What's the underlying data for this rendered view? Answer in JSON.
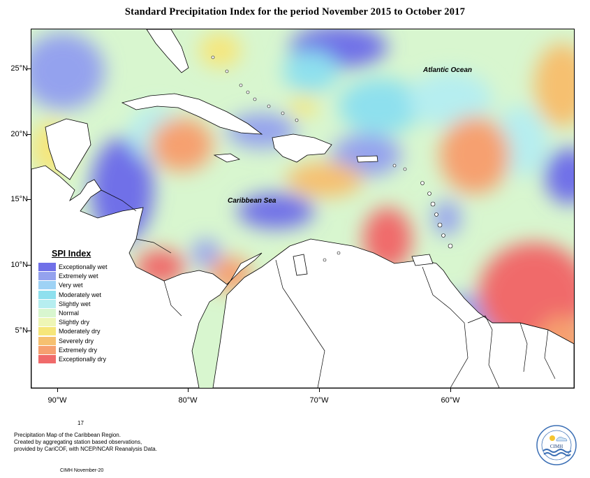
{
  "title": "Standard Precipitation Index for the period November 2015 to October 2017",
  "ocean_labels": {
    "atlantic": "Atlantic Ocean",
    "caribbean": "Caribbean Sea"
  },
  "latitude_labels": [
    "25°N",
    "20°N",
    "15°N",
    "10°N",
    "5°N"
  ],
  "longitude_labels": [
    "90°W",
    "80°W",
    "70°W",
    "60°W"
  ],
  "legend": {
    "title": "SPI Index",
    "items": [
      {
        "label": "Exceptionally wet",
        "color": "#7070e8"
      },
      {
        "label": "Extremely wet",
        "color": "#94a2ee"
      },
      {
        "label": "Very wet",
        "color": "#9ed2f5"
      },
      {
        "label": "Moderately wet",
        "color": "#8ee0ee"
      },
      {
        "label": "Slightly wet",
        "color": "#b6eef0"
      },
      {
        "label": "Normal",
        "color": "#d8f6cf"
      },
      {
        "label": "Slightly dry",
        "color": "#eef6b6"
      },
      {
        "label": "Moderately dry",
        "color": "#f6e67a"
      },
      {
        "label": "Severely dry",
        "color": "#f6c070"
      },
      {
        "label": "Extremely dry",
        "color": "#f6a070"
      },
      {
        "label": "Exceptionally dry",
        "color": "#f06a6a"
      }
    ]
  },
  "footer": {
    "page_number": "17",
    "line1": "Precipitation Map of the Caribbean Region.",
    "line2": "Created by aggregating station based observations,",
    "line3": "provided by CariCOF, with NCEP/NCAR Reanalysis Data.",
    "credit": "CIMH November-20"
  },
  "logo": {
    "text": "CIMH"
  }
}
